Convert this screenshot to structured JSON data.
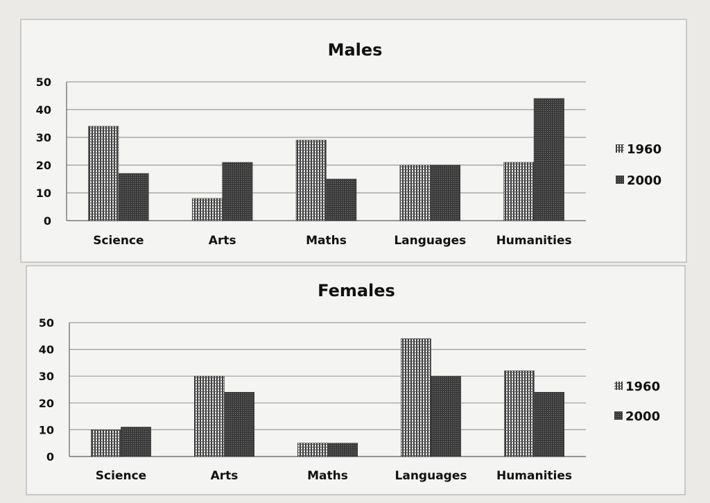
{
  "chart_data": [
    {
      "type": "bar",
      "title": "Males",
      "categories": [
        "Science",
        "Arts",
        "Maths",
        "Languages",
        "Humanities"
      ],
      "series": [
        {
          "name": "1960",
          "values": [
            34,
            8,
            29,
            20,
            21
          ]
        },
        {
          "name": "2000",
          "values": [
            17,
            21,
            15,
            20,
            44
          ]
        }
      ],
      "yticks": [
        "0",
        "10",
        "20",
        "30",
        "40",
        "50"
      ],
      "ylim": [
        0,
        50
      ],
      "grid": true,
      "legend": "right"
    },
    {
      "type": "bar",
      "title": "Females",
      "categories": [
        "Science",
        "Arts",
        "Maths",
        "Languages",
        "Humanities"
      ],
      "series": [
        {
          "name": "1960",
          "values": [
            10,
            30,
            5,
            44,
            32
          ]
        },
        {
          "name": "2000",
          "values": [
            11,
            24,
            5,
            30,
            24
          ]
        }
      ],
      "yticks": [
        "0",
        "10",
        "20",
        "30",
        "40",
        "50"
      ],
      "ylim": [
        0,
        50
      ],
      "grid": true,
      "legend": "right"
    }
  ],
  "colors": {
    "series_1960": "#4a4a4a",
    "series_2000": "#2e2e2e",
    "grid": "#9a9a9a",
    "frame": "#bdbdbd"
  }
}
